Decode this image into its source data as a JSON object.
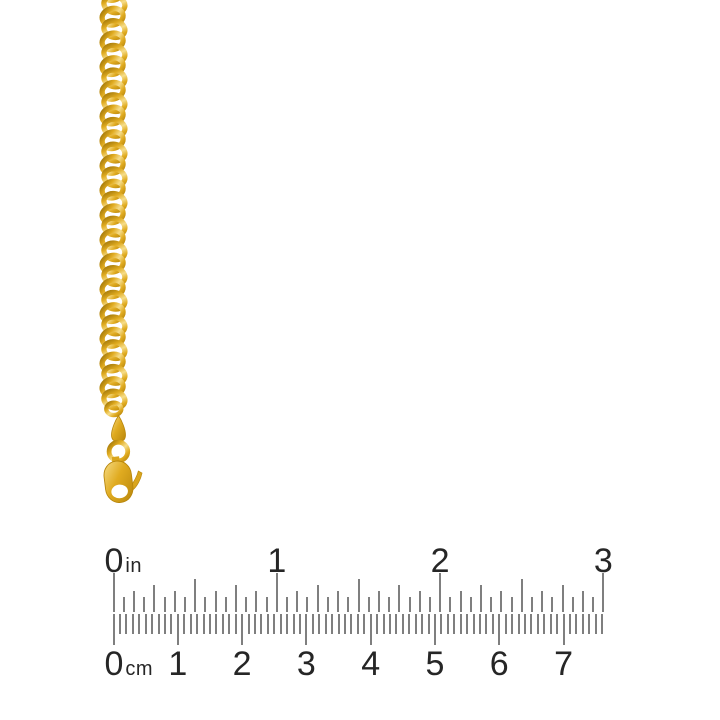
{
  "canvas": {
    "background": "#ffffff"
  },
  "product": {
    "chain": {
      "kind": "gold-curb-chain",
      "link_count": 34,
      "colors": {
        "gold_shadow": "#9e7408",
        "gold_dark": "#b8860b",
        "gold_mid": "#e0ab20",
        "gold_light": "#f6dd8a"
      }
    },
    "clasp": {
      "kind": "lobster-clasp-with-jump-ring-and-teardrop-tag"
    }
  },
  "ruler": {
    "tick_color": "#7f7f7f",
    "label_color": "#262626",
    "inch_scale": {
      "unit": "in",
      "labels": [
        "0",
        "1",
        "2",
        "3"
      ],
      "divisions_per_inch": 16
    },
    "cm_scale": {
      "unit": "cm",
      "labels": [
        "0",
        "1",
        "2",
        "3",
        "4",
        "5",
        "6",
        "7"
      ],
      "divisions_per_cm": 10,
      "extra_mm_past_last_label": 6
    }
  }
}
